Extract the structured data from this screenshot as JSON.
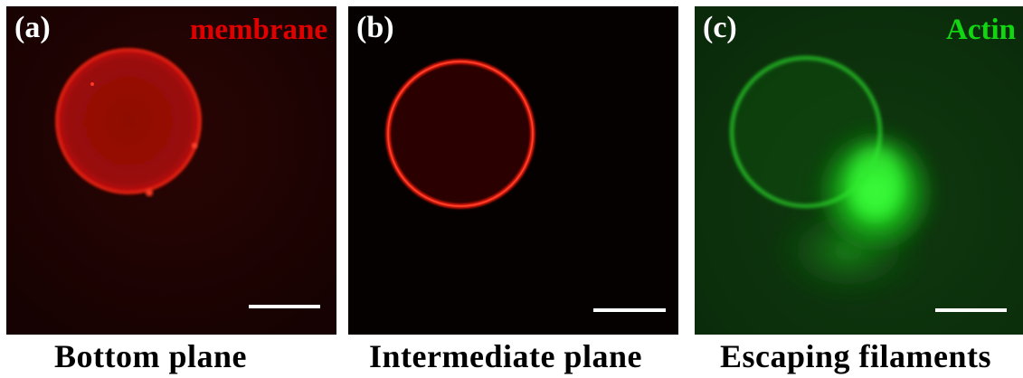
{
  "panels": [
    {
      "id": "a",
      "letter": "(a)",
      "stain": "membrane",
      "stain_color": "#e00000",
      "caption": "Bottom plane"
    },
    {
      "id": "b",
      "letter": "(b)",
      "stain": "",
      "caption": "Intermediate plane"
    },
    {
      "id": "c",
      "letter": "(c)",
      "stain": "Actin",
      "stain_color": "#11d611",
      "caption": "Escaping filaments"
    }
  ],
  "colors": {
    "membrane_red": "#ff2010",
    "actin_green": "#22ff22",
    "scale_bar": "#ffffff"
  }
}
